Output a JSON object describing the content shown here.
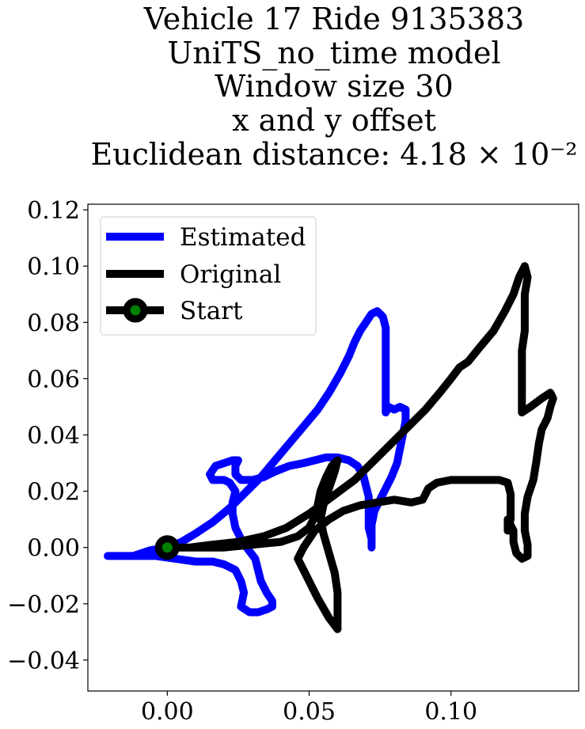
{
  "chart_data": {
    "type": "line",
    "title_lines": [
      "Vehicle 17 Ride 9135383",
      "UniTS_no_time model",
      "Window size 30",
      "x and y offset",
      "Euclidean distance: 4.18 × 10⁻²"
    ],
    "xlabel": "",
    "ylabel": "",
    "xlim": [
      -0.028,
      0.145
    ],
    "ylim": [
      -0.051,
      0.122
    ],
    "xticks": [
      0.0,
      0.05,
      0.1
    ],
    "xtick_labels": [
      "0.00",
      "0.05",
      "0.10"
    ],
    "yticks": [
      -0.04,
      -0.02,
      0.0,
      0.02,
      0.04,
      0.06,
      0.08,
      0.1,
      0.12
    ],
    "ytick_labels": [
      "−0.04",
      "−0.02",
      "0.00",
      "0.02",
      "0.04",
      "0.06",
      "0.08",
      "0.10",
      "0.12"
    ],
    "grid": false,
    "legend_position": "top-left",
    "series": [
      {
        "name": "Estimated",
        "color": "#0000ff",
        "points": [
          [
            0.0,
            0.0
          ],
          [
            -0.006,
            -0.001
          ],
          [
            -0.012,
            -0.003
          ],
          [
            -0.018,
            -0.003
          ],
          [
            -0.021,
            -0.003
          ],
          [
            -0.017,
            -0.003
          ],
          [
            -0.01,
            -0.003
          ],
          [
            -0.004,
            -0.003
          ],
          [
            0.003,
            -0.004
          ],
          [
            0.01,
            -0.005
          ],
          [
            0.016,
            -0.005
          ],
          [
            0.02,
            -0.006
          ],
          [
            0.024,
            -0.008
          ],
          [
            0.026,
            -0.012
          ],
          [
            0.027,
            -0.016
          ],
          [
            0.026,
            -0.021
          ],
          [
            0.029,
            -0.023
          ],
          [
            0.032,
            -0.023
          ],
          [
            0.035,
            -0.022
          ],
          [
            0.037,
            -0.021
          ],
          [
            0.037,
            -0.019
          ],
          [
            0.035,
            -0.016
          ],
          [
            0.033,
            -0.012
          ],
          [
            0.032,
            -0.008
          ],
          [
            0.031,
            -0.004
          ],
          [
            0.028,
            0.0
          ],
          [
            0.026,
            0.003
          ],
          [
            0.024,
            0.007
          ],
          [
            0.023,
            0.012
          ],
          [
            0.023,
            0.016
          ],
          [
            0.024,
            0.02
          ],
          [
            0.022,
            0.023
          ],
          [
            0.02,
            0.024
          ],
          [
            0.016,
            0.024
          ],
          [
            0.015,
            0.026
          ],
          [
            0.017,
            0.029
          ],
          [
            0.02,
            0.03
          ],
          [
            0.023,
            0.031
          ],
          [
            0.025,
            0.031
          ],
          [
            0.024,
            0.029
          ],
          [
            0.024,
            0.026
          ],
          [
            0.026,
            0.024
          ],
          [
            0.03,
            0.024
          ],
          [
            0.034,
            0.025
          ],
          [
            0.038,
            0.027
          ],
          [
            0.043,
            0.029
          ],
          [
            0.048,
            0.03
          ],
          [
            0.052,
            0.031
          ],
          [
            0.056,
            0.032
          ],
          [
            0.06,
            0.032
          ],
          [
            0.064,
            0.031
          ],
          [
            0.067,
            0.029
          ],
          [
            0.069,
            0.026
          ],
          [
            0.07,
            0.022
          ],
          [
            0.071,
            0.018
          ],
          [
            0.071,
            0.014
          ],
          [
            0.071,
            0.011
          ],
          [
            0.071,
            0.007
          ],
          [
            0.072,
            0.003
          ],
          [
            0.072,
            0.0
          ],
          [
            0.072,
            0.003
          ],
          [
            0.072,
            0.008
          ],
          [
            0.073,
            0.013
          ],
          [
            0.075,
            0.017
          ],
          [
            0.077,
            0.021
          ],
          [
            0.079,
            0.025
          ],
          [
            0.081,
            0.03
          ],
          [
            0.082,
            0.035
          ],
          [
            0.083,
            0.04
          ],
          [
            0.084,
            0.045
          ],
          [
            0.084,
            0.049
          ],
          [
            0.082,
            0.05
          ],
          [
            0.08,
            0.049
          ],
          [
            0.078,
            0.05
          ],
          [
            0.077,
            0.048
          ],
          [
            0.077,
            0.052
          ],
          [
            0.077,
            0.058
          ],
          [
            0.077,
            0.065
          ],
          [
            0.077,
            0.072
          ],
          [
            0.077,
            0.078
          ],
          [
            0.076,
            0.082
          ],
          [
            0.074,
            0.084
          ],
          [
            0.072,
            0.083
          ],
          [
            0.07,
            0.08
          ],
          [
            0.068,
            0.077
          ],
          [
            0.066,
            0.073
          ],
          [
            0.064,
            0.068
          ],
          [
            0.061,
            0.062
          ],
          [
            0.057,
            0.055
          ],
          [
            0.053,
            0.049
          ],
          [
            0.048,
            0.043
          ],
          [
            0.043,
            0.037
          ],
          [
            0.038,
            0.031
          ],
          [
            0.033,
            0.025
          ],
          [
            0.028,
            0.02
          ],
          [
            0.022,
            0.014
          ],
          [
            0.016,
            0.009
          ],
          [
            0.01,
            0.005
          ],
          [
            0.005,
            0.002
          ],
          [
            0.0,
            0.0
          ]
        ]
      },
      {
        "name": "Original",
        "color": "#000000",
        "points": [
          [
            0.0,
            0.0
          ],
          [
            0.01,
            0.0
          ],
          [
            0.02,
            0.0
          ],
          [
            0.03,
            0.001
          ],
          [
            0.04,
            0.002
          ],
          [
            0.046,
            0.004
          ],
          [
            0.05,
            0.007
          ],
          [
            0.052,
            0.011
          ],
          [
            0.053,
            0.015
          ],
          [
            0.054,
            0.02
          ],
          [
            0.056,
            0.025
          ],
          [
            0.058,
            0.029
          ],
          [
            0.06,
            0.031
          ],
          [
            0.059,
            0.027
          ],
          [
            0.057,
            0.021
          ],
          [
            0.055,
            0.015
          ],
          [
            0.054,
            0.01
          ],
          [
            0.055,
            0.005
          ],
          [
            0.057,
            -0.002
          ],
          [
            0.059,
            -0.009
          ],
          [
            0.06,
            -0.016
          ],
          [
            0.06,
            -0.023
          ],
          [
            0.06,
            -0.029
          ],
          [
            0.057,
            -0.025
          ],
          [
            0.053,
            -0.018
          ],
          [
            0.049,
            -0.01
          ],
          [
            0.046,
            -0.004
          ],
          [
            0.048,
            0.0
          ],
          [
            0.052,
            0.006
          ],
          [
            0.057,
            0.01
          ],
          [
            0.062,
            0.013
          ],
          [
            0.068,
            0.015
          ],
          [
            0.074,
            0.016
          ],
          [
            0.08,
            0.017
          ],
          [
            0.086,
            0.016
          ],
          [
            0.09,
            0.017
          ],
          [
            0.091,
            0.019
          ],
          [
            0.092,
            0.021
          ],
          [
            0.095,
            0.023
          ],
          [
            0.1,
            0.024
          ],
          [
            0.106,
            0.024
          ],
          [
            0.112,
            0.024
          ],
          [
            0.117,
            0.024
          ],
          [
            0.12,
            0.023
          ],
          [
            0.121,
            0.019
          ],
          [
            0.121,
            0.014
          ],
          [
            0.121,
            0.01
          ],
          [
            0.12,
            0.006
          ],
          [
            0.12,
            0.01
          ],
          [
            0.122,
            0.006
          ],
          [
            0.122,
            0.002
          ],
          [
            0.123,
            -0.002
          ],
          [
            0.125,
            -0.004
          ],
          [
            0.127,
            -0.003
          ],
          [
            0.127,
            0.001
          ],
          [
            0.126,
            0.006
          ],
          [
            0.126,
            0.012
          ],
          [
            0.127,
            0.018
          ],
          [
            0.129,
            0.024
          ],
          [
            0.13,
            0.03
          ],
          [
            0.131,
            0.037
          ],
          [
            0.132,
            0.042
          ],
          [
            0.134,
            0.046
          ],
          [
            0.135,
            0.05
          ],
          [
            0.136,
            0.053
          ],
          [
            0.135,
            0.055
          ],
          [
            0.132,
            0.053
          ],
          [
            0.128,
            0.05
          ],
          [
            0.125,
            0.048
          ],
          [
            0.125,
            0.05
          ],
          [
            0.125,
            0.056
          ],
          [
            0.125,
            0.063
          ],
          [
            0.125,
            0.07
          ],
          [
            0.126,
            0.077
          ],
          [
            0.126,
            0.084
          ],
          [
            0.126,
            0.09
          ],
          [
            0.127,
            0.096
          ],
          [
            0.126,
            0.1
          ],
          [
            0.124,
            0.096
          ],
          [
            0.122,
            0.09
          ],
          [
            0.119,
            0.084
          ],
          [
            0.115,
            0.077
          ],
          [
            0.11,
            0.071
          ],
          [
            0.106,
            0.066
          ],
          [
            0.103,
            0.064
          ],
          [
            0.1,
            0.06
          ],
          [
            0.096,
            0.055
          ],
          [
            0.091,
            0.049
          ],
          [
            0.085,
            0.043
          ],
          [
            0.079,
            0.037
          ],
          [
            0.073,
            0.031
          ],
          [
            0.066,
            0.024
          ],
          [
            0.058,
            0.018
          ],
          [
            0.05,
            0.012
          ],
          [
            0.042,
            0.007
          ],
          [
            0.034,
            0.004
          ],
          [
            0.025,
            0.002
          ],
          [
            0.016,
            0.001
          ],
          [
            0.008,
            0.0
          ]
        ]
      }
    ],
    "start": {
      "name": "Start",
      "x": 0.0,
      "y": 0.0,
      "line_color": "#000000",
      "marker_face_color": "#008000"
    }
  }
}
